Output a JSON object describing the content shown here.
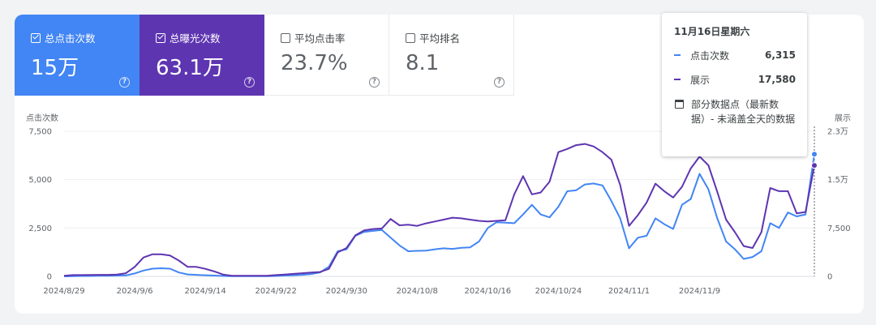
{
  "metrics": [
    {
      "label": "总点击次数",
      "value": "15万",
      "checked": true,
      "bg": "#4285f4"
    },
    {
      "label": "总曝光次数",
      "value": "63.1万",
      "checked": true,
      "bg": "#5e35b1"
    },
    {
      "label": "平均点击率",
      "value": "23.7%",
      "checked": false
    },
    {
      "label": "平均排名",
      "value": "8.1",
      "checked": false
    }
  ],
  "help_glyph": "?",
  "tooltip": {
    "date": "11月16日星期六",
    "rows": [
      {
        "name": "点击次数",
        "value": "6,315",
        "color": "#4285f4"
      },
      {
        "name": "展示",
        "value": "17,580",
        "color": "#5e35b1"
      }
    ],
    "note": "部分数据点（最新数据）- 未涵盖全天的数据"
  },
  "chart_data": {
    "type": "line",
    "x_ticks": [
      "2024/8/29",
      "2024/9/6",
      "2024/9/14",
      "2024/9/22",
      "2024/9/30",
      "2024/10/8",
      "2024/10/16",
      "2024/10/24",
      "2024/11/1",
      "2024/11/9"
    ],
    "x_start": "2024/8/29",
    "x_end": "2024/11/16",
    "left_axis": {
      "label": "点击次数",
      "ticks": [
        "7,500",
        "5,000",
        "2,500",
        "0"
      ],
      "max": 7500
    },
    "right_axis": {
      "label": "展示",
      "ticks": [
        "2.3万",
        "1.5万",
        "7,500",
        "0"
      ],
      "max": 23000
    },
    "series": [
      {
        "name": "点击次数",
        "axis": "left",
        "color": "#4285f4",
        "values": [
          0,
          10,
          20,
          20,
          30,
          30,
          40,
          50,
          150,
          300,
          400,
          420,
          400,
          200,
          100,
          80,
          60,
          40,
          20,
          10,
          10,
          10,
          10,
          10,
          20,
          40,
          60,
          80,
          120,
          200,
          500,
          1300,
          1400,
          2100,
          2300,
          2350,
          2400,
          2000,
          1600,
          1300,
          1320,
          1330,
          1400,
          1450,
          1420,
          1480,
          1500,
          1800,
          2500,
          2800,
          2780,
          2750,
          3200,
          3700,
          3200,
          3050,
          3600,
          4400,
          4450,
          4750,
          4800,
          4700,
          3900,
          3000,
          1450,
          2000,
          2100,
          3000,
          2700,
          2450,
          3700,
          4000,
          5300,
          4500,
          3000,
          1800,
          1400,
          900,
          1000,
          1300,
          2750,
          2500,
          3300,
          3100,
          3200,
          6315
        ]
      },
      {
        "name": "展示",
        "axis": "right",
        "color": "#5e35b1",
        "values": [
          100,
          200,
          200,
          220,
          240,
          250,
          300,
          500,
          1500,
          3000,
          3500,
          3500,
          3300,
          2500,
          1500,
          1500,
          1200,
          800,
          300,
          100,
          100,
          100,
          100,
          100,
          200,
          300,
          400,
          500,
          600,
          700,
          1200,
          3800,
          4500,
          6500,
          7300,
          7500,
          7600,
          9100,
          8100,
          8200,
          8000,
          8400,
          8700,
          9000,
          9300,
          9200,
          9000,
          8800,
          8700,
          8800,
          8900,
          13000,
          15900,
          13000,
          13300,
          15000,
          19700,
          20200,
          20800,
          21000,
          20600,
          19700,
          18500,
          14500,
          8000,
          9700,
          11700,
          14700,
          13500,
          12500,
          14200,
          17100,
          19000,
          17600,
          13400,
          9000,
          7000,
          4800,
          4500,
          7000,
          14000,
          13500,
          13500,
          10000,
          10200,
          17580
        ]
      }
    ]
  }
}
